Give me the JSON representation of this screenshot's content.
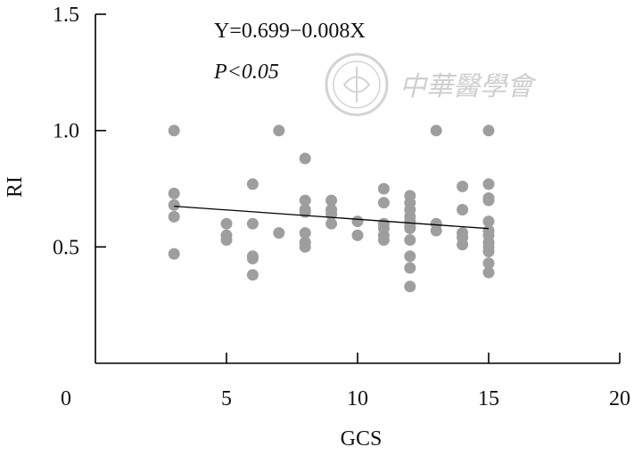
{
  "chart_data": {
    "type": "scatter",
    "xlabel": "GCS",
    "ylabel": "RI",
    "xlim": [
      0,
      20
    ],
    "ylim": [
      0,
      1.5
    ],
    "x_ticks": [
      0,
      5,
      10,
      15,
      20
    ],
    "x_tick_labels": [
      "0",
      "5",
      "10",
      "15",
      "20"
    ],
    "y_ticks": [
      0.5,
      1.0,
      1.5
    ],
    "y_tick_labels": [
      "0.5",
      "1.0",
      "1.5"
    ],
    "grid": false,
    "legend": "none",
    "point_color": "#9e9e9e",
    "points": [
      {
        "x": 3,
        "y": 1.0
      },
      {
        "x": 3,
        "y": 0.73
      },
      {
        "x": 3,
        "y": 0.68
      },
      {
        "x": 3,
        "y": 0.63
      },
      {
        "x": 3,
        "y": 0.47
      },
      {
        "x": 5,
        "y": 0.6
      },
      {
        "x": 5,
        "y": 0.55
      },
      {
        "x": 5,
        "y": 0.53
      },
      {
        "x": 6,
        "y": 0.77
      },
      {
        "x": 6,
        "y": 0.6
      },
      {
        "x": 6,
        "y": 0.46
      },
      {
        "x": 6,
        "y": 0.45
      },
      {
        "x": 6,
        "y": 0.38
      },
      {
        "x": 7,
        "y": 1.0
      },
      {
        "x": 7,
        "y": 0.56
      },
      {
        "x": 8,
        "y": 0.88
      },
      {
        "x": 8,
        "y": 0.7
      },
      {
        "x": 8,
        "y": 0.66
      },
      {
        "x": 8,
        "y": 0.65
      },
      {
        "x": 8,
        "y": 0.56
      },
      {
        "x": 8,
        "y": 0.52
      },
      {
        "x": 8,
        "y": 0.5
      },
      {
        "x": 9,
        "y": 0.7
      },
      {
        "x": 9,
        "y": 0.66
      },
      {
        "x": 9,
        "y": 0.64
      },
      {
        "x": 9,
        "y": 0.6
      },
      {
        "x": 10,
        "y": 0.61
      },
      {
        "x": 10,
        "y": 0.55
      },
      {
        "x": 11,
        "y": 0.75
      },
      {
        "x": 11,
        "y": 0.69
      },
      {
        "x": 11,
        "y": 0.6
      },
      {
        "x": 11,
        "y": 0.58
      },
      {
        "x": 11,
        "y": 0.55
      },
      {
        "x": 11,
        "y": 0.53
      },
      {
        "x": 12,
        "y": 0.72
      },
      {
        "x": 12,
        "y": 0.69
      },
      {
        "x": 12,
        "y": 0.66
      },
      {
        "x": 12,
        "y": 0.63
      },
      {
        "x": 12,
        "y": 0.61
      },
      {
        "x": 12,
        "y": 0.59
      },
      {
        "x": 12,
        "y": 0.58
      },
      {
        "x": 12,
        "y": 0.53
      },
      {
        "x": 12,
        "y": 0.46
      },
      {
        "x": 12,
        "y": 0.41
      },
      {
        "x": 12,
        "y": 0.33
      },
      {
        "x": 13,
        "y": 1.0
      },
      {
        "x": 13,
        "y": 0.6
      },
      {
        "x": 13,
        "y": 0.57
      },
      {
        "x": 14,
        "y": 0.76
      },
      {
        "x": 14,
        "y": 0.66
      },
      {
        "x": 14,
        "y": 0.56
      },
      {
        "x": 14,
        "y": 0.54
      },
      {
        "x": 14,
        "y": 0.51
      },
      {
        "x": 15,
        "y": 1.0
      },
      {
        "x": 15,
        "y": 0.77
      },
      {
        "x": 15,
        "y": 0.71
      },
      {
        "x": 15,
        "y": 0.7
      },
      {
        "x": 15,
        "y": 0.61
      },
      {
        "x": 15,
        "y": 0.57
      },
      {
        "x": 15,
        "y": 0.55
      },
      {
        "x": 15,
        "y": 0.52
      },
      {
        "x": 15,
        "y": 0.5
      },
      {
        "x": 15,
        "y": 0.48
      },
      {
        "x": 15,
        "y": 0.43
      },
      {
        "x": 15,
        "y": 0.39
      }
    ],
    "regression": {
      "intercept": 0.699,
      "slope": -0.008,
      "x_range": [
        3,
        15
      ],
      "equation": "Y=0.699−0.008X",
      "p_value_text": "P<0.05",
      "line_color": "#000000"
    }
  },
  "watermark": {
    "text": "中華醫學會",
    "seal": "seal-emblem"
  }
}
